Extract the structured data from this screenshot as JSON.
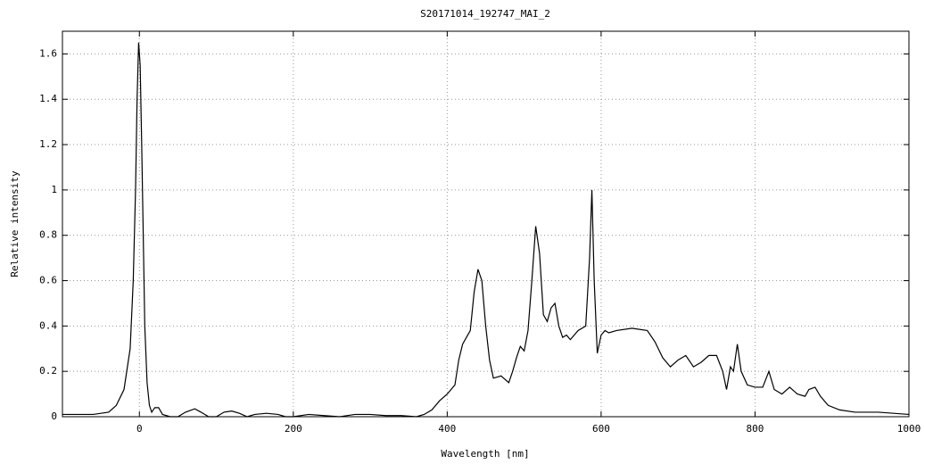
{
  "chart_data": {
    "type": "line",
    "title": "S20171014_192747_MAI_2",
    "x_label": "Wavelength [nm]",
    "y_label": "Relative intensity",
    "color": "#000000",
    "grid": true,
    "xlim": [
      -100,
      1000
    ],
    "ylim": [
      0,
      1.7
    ],
    "xticks": [
      0,
      200,
      400,
      600,
      800,
      1000
    ],
    "yticks": [
      0,
      0.2,
      0.4,
      0.6,
      0.8,
      1,
      1.2,
      1.4,
      1.6
    ],
    "x": [
      -100,
      -60,
      -40,
      -30,
      -20,
      -12,
      -8,
      -5,
      -3,
      -1,
      1,
      3,
      5,
      7,
      10,
      13,
      16,
      20,
      25,
      30,
      40,
      50,
      60,
      72,
      80,
      90,
      100,
      110,
      120,
      130,
      140,
      150,
      165,
      180,
      190,
      200,
      220,
      240,
      260,
      280,
      300,
      320,
      340,
      360,
      370,
      380,
      390,
      400,
      410,
      415,
      420,
      425,
      430,
      435,
      440,
      445,
      450,
      455,
      460,
      470,
      480,
      485,
      490,
      495,
      500,
      505,
      510,
      515,
      520,
      525,
      530,
      535,
      540,
      545,
      550,
      555,
      560,
      570,
      580,
      585,
      588,
      591,
      595,
      600,
      605,
      610,
      620,
      640,
      660,
      670,
      680,
      690,
      700,
      710,
      720,
      730,
      740,
      750,
      758,
      763,
      768,
      772,
      777,
      782,
      790,
      800,
      810,
      818,
      825,
      835,
      845,
      855,
      865,
      870,
      878,
      885,
      895,
      910,
      930,
      960,
      980,
      1000
    ],
    "values": [
      0.01,
      0.01,
      0.02,
      0.05,
      0.12,
      0.3,
      0.6,
      1.0,
      1.4,
      1.65,
      1.55,
      1.2,
      0.8,
      0.4,
      0.15,
      0.05,
      0.02,
      0.04,
      0.04,
      0.01,
      0.0,
      0.0,
      0.02,
      0.035,
      0.02,
      0.0,
      0.0,
      0.02,
      0.025,
      0.015,
      0.0,
      0.01,
      0.015,
      0.01,
      0.0,
      0.0,
      0.01,
      0.005,
      0.0,
      0.01,
      0.01,
      0.005,
      0.005,
      0.0,
      0.01,
      0.03,
      0.07,
      0.1,
      0.14,
      0.25,
      0.32,
      0.35,
      0.38,
      0.55,
      0.65,
      0.6,
      0.4,
      0.25,
      0.17,
      0.18,
      0.15,
      0.2,
      0.26,
      0.31,
      0.29,
      0.38,
      0.6,
      0.84,
      0.72,
      0.45,
      0.42,
      0.48,
      0.5,
      0.4,
      0.35,
      0.36,
      0.34,
      0.38,
      0.4,
      0.7,
      1.0,
      0.6,
      0.28,
      0.36,
      0.38,
      0.37,
      0.38,
      0.39,
      0.38,
      0.33,
      0.26,
      0.22,
      0.25,
      0.27,
      0.22,
      0.24,
      0.27,
      0.27,
      0.2,
      0.12,
      0.22,
      0.2,
      0.32,
      0.2,
      0.14,
      0.13,
      0.13,
      0.2,
      0.12,
      0.1,
      0.13,
      0.1,
      0.09,
      0.12,
      0.13,
      0.09,
      0.05,
      0.03,
      0.02,
      0.02,
      0.015,
      0.01
    ]
  }
}
